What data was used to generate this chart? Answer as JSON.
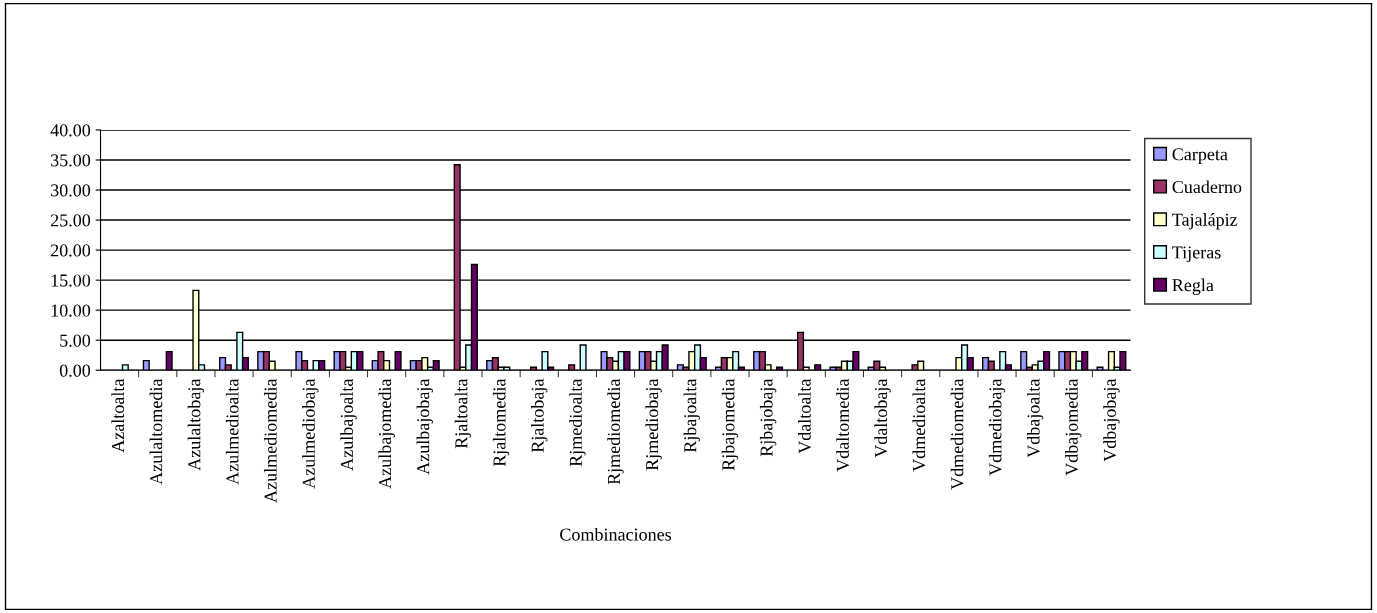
{
  "chart_data": {
    "type": "bar",
    "xlabel": "Combinaciones",
    "categories": [
      "Azaltoalta",
      "Azulaltomedia",
      "Azulaltobaja",
      "Azulmedioalta",
      "Azulmediomedia",
      "Azulmediobaja",
      "Azulbajoalta",
      "Azulbajomedia",
      "Azulbajobaja",
      "Rjaltoalta",
      "Rjaltomedia",
      "Rjaltobaja",
      "Rjmedioalta",
      "Rjmediomedia",
      "Rjmediobaja",
      "Rjbajoalta",
      "Rjbajomedia",
      "Rjbajobaja",
      "Vdaltoalta",
      "Vdaltomedia",
      "Vdaltobaja",
      "Vdmedioalta",
      "Vdmediomedia",
      "Vdmediobaja",
      "Vdbajoalta",
      "Vdbajomedia",
      "Vdbajobaja"
    ],
    "series": [
      {
        "name": "Carpeta",
        "color": "#9999ff",
        "values": [
          null,
          1.6,
          null,
          2.1,
          3.1,
          3.1,
          3.1,
          1.6,
          1.6,
          null,
          1.6,
          null,
          null,
          3.1,
          3.1,
          0.9,
          0.5,
          3.1,
          null,
          0.5,
          0.5,
          null,
          null,
          2.1,
          3.1,
          3.1,
          0.5
        ]
      },
      {
        "name": "Cuaderno",
        "color": "#993366",
        "values": [
          null,
          null,
          null,
          0.9,
          3.1,
          1.6,
          3.1,
          3.1,
          1.6,
          34.2,
          2.1,
          0.5,
          0.9,
          2.1,
          3.1,
          0.5,
          2.1,
          3.1,
          6.3,
          0.5,
          1.5,
          0.9,
          null,
          1.5,
          0.5,
          3.1,
          null
        ]
      },
      {
        "name": "Tajalápiz",
        "color": "#ffffcc",
        "values": [
          null,
          null,
          13.3,
          null,
          1.5,
          null,
          0.5,
          1.6,
          2.1,
          0.5,
          0.5,
          null,
          null,
          1.5,
          1.5,
          3.1,
          2.1,
          0.9,
          0.5,
          1.5,
          0.5,
          1.5,
          2.1,
          null,
          0.9,
          3.1,
          3.1
        ]
      },
      {
        "name": "Tijeras",
        "color": "#ccffff",
        "values": [
          0.9,
          null,
          0.9,
          6.3,
          null,
          1.6,
          3.1,
          null,
          0.5,
          4.2,
          0.5,
          3.1,
          4.2,
          3.1,
          3.1,
          4.2,
          3.1,
          null,
          null,
          1.5,
          null,
          null,
          4.2,
          3.1,
          1.5,
          1.5,
          0.5
        ]
      },
      {
        "name": "Regla",
        "color": "#660066",
        "values": [
          null,
          3.1,
          null,
          2.1,
          null,
          1.6,
          3.1,
          3.1,
          1.6,
          17.6,
          null,
          0.5,
          null,
          3.1,
          4.2,
          2.1,
          0.5,
          0.5,
          0.9,
          3.1,
          null,
          null,
          2.1,
          0.9,
          3.1,
          3.1,
          3.1
        ]
      }
    ],
    "ylim": [
      0,
      40
    ],
    "yticks": [
      {
        "value": 0,
        "label": "0.00"
      },
      {
        "value": 5,
        "label": "5.00"
      },
      {
        "value": 10,
        "label": "10.00"
      },
      {
        "value": 15,
        "label": "15.00"
      },
      {
        "value": 20,
        "label": "20.00"
      },
      {
        "value": 25,
        "label": "25.00"
      },
      {
        "value": 30,
        "label": "30.00"
      },
      {
        "value": 35,
        "label": "35.00"
      },
      {
        "value": 40,
        "label": "40.00"
      }
    ],
    "grid": "y",
    "legend": "right"
  }
}
